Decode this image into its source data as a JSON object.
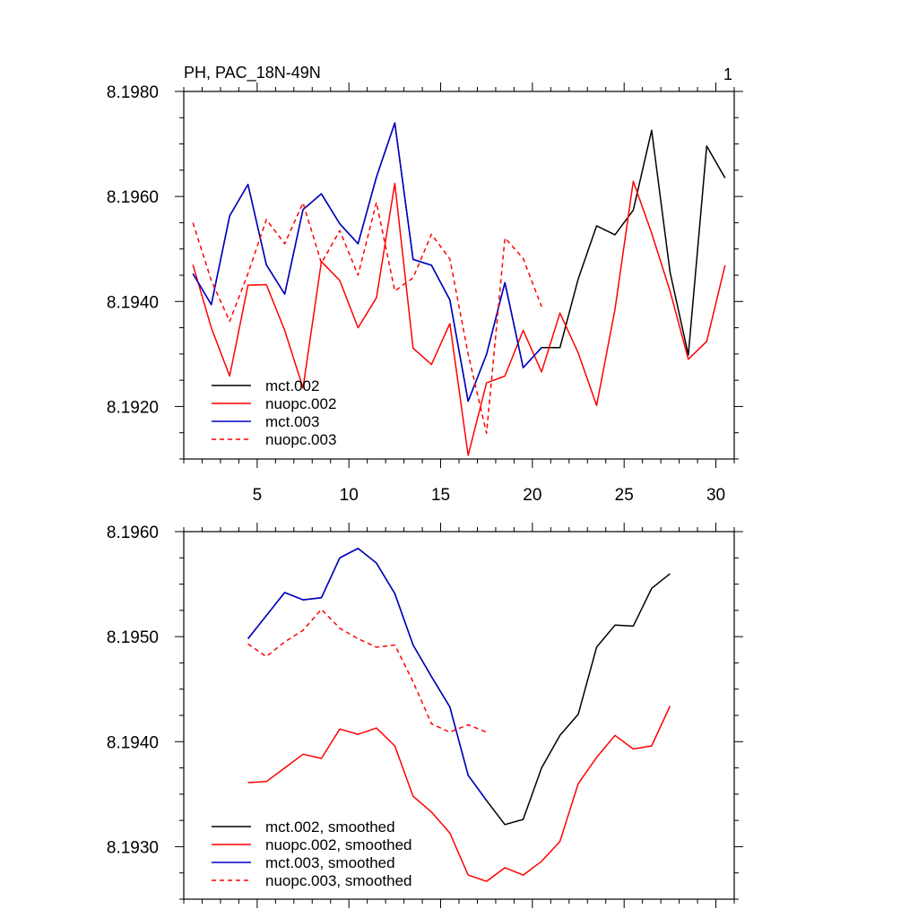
{
  "chart_data": [
    {
      "type": "line",
      "title": "PH, PAC_18N-49N",
      "panel_label": "1",
      "xlim": [
        1,
        31
      ],
      "ylim": [
        8.191,
        8.198
      ],
      "xticks": [
        5,
        10,
        15,
        20,
        25,
        30
      ],
      "xtick_labels": [
        "5",
        "10",
        "15",
        "20",
        "25",
        "30"
      ],
      "yticks": [
        8.192,
        8.194,
        8.196,
        8.198
      ],
      "ytick_labels": [
        "8.1920",
        "8.1940",
        "8.1960",
        "8.1980"
      ],
      "legend": {
        "position": "bottom-left",
        "labels": [
          "mct.002",
          "nuopc.002",
          "mct.003",
          "nuopc.003"
        ]
      },
      "series": [
        {
          "name": "mct.002",
          "color": "#000000",
          "dash": "solid",
          "x": [
            1.5,
            2.5,
            3.5,
            4.5,
            5.5,
            6.5,
            7.5,
            8.5,
            9.5,
            10.5,
            11.5,
            12.5,
            13.5,
            14.5,
            15.5,
            16.5,
            17.5,
            18.5,
            19.5,
            20.5,
            21.5,
            22.5,
            23.5,
            24.5,
            25.5,
            26.5,
            27.5,
            28.5,
            29.5,
            30.5
          ],
          "y": [
            8.19453,
            8.19394,
            8.19563,
            8.19623,
            8.1947,
            8.19414,
            8.19575,
            8.19605,
            8.19548,
            8.1951,
            8.19637,
            8.1974,
            8.1948,
            8.19469,
            8.19403,
            8.1921,
            8.19299,
            8.19436,
            8.19274,
            8.19312,
            8.19312,
            8.19443,
            8.19544,
            8.19527,
            8.19574,
            8.19726,
            8.19456,
            8.19298,
            8.19696,
            8.19635
          ]
        },
        {
          "name": "nuopc.002",
          "color": "#ff0000",
          "dash": "solid",
          "x": [
            1.5,
            2.5,
            3.5,
            4.5,
            5.5,
            6.5,
            7.5,
            8.5,
            9.5,
            10.5,
            11.5,
            12.5,
            13.5,
            14.5,
            15.5,
            16.5,
            17.5,
            18.5,
            19.5,
            20.5,
            21.5,
            22.5,
            23.5,
            24.5,
            25.5,
            26.5,
            27.5,
            28.5,
            29.5,
            30.5
          ],
          "y": [
            8.1947,
            8.1935,
            8.19258,
            8.19431,
            8.19432,
            8.19345,
            8.19235,
            8.19476,
            8.1944,
            8.1935,
            8.19407,
            8.19625,
            8.19311,
            8.1928,
            8.19358,
            8.19107,
            8.19245,
            8.19258,
            8.19345,
            8.19266,
            8.19378,
            8.19302,
            8.19202,
            8.19385,
            8.19629,
            8.1953,
            8.1942,
            8.1929,
            8.19324,
            8.19469
          ]
        },
        {
          "name": "mct.003",
          "color": "#0000cc",
          "dash": "solid",
          "x": [
            1.5,
            2.5,
            3.5,
            4.5,
            5.5,
            6.5,
            7.5,
            8.5,
            9.5,
            10.5,
            11.5,
            12.5,
            13.5,
            14.5,
            15.5,
            16.5,
            17.5,
            18.5,
            19.5,
            20.5
          ],
          "y": [
            8.19453,
            8.19394,
            8.19563,
            8.19623,
            8.1947,
            8.19414,
            8.19575,
            8.19605,
            8.19548,
            8.1951,
            8.19637,
            8.1974,
            8.1948,
            8.19469,
            8.19403,
            8.1921,
            8.19299,
            8.19436,
            8.19274,
            8.19312
          ]
        },
        {
          "name": "nuopc.003",
          "color": "#ff0000",
          "dash": "dashed",
          "x": [
            1.5,
            2.5,
            3.5,
            4.5,
            5.5,
            6.5,
            7.5,
            8.5,
            9.5,
            10.5,
            11.5,
            12.5,
            13.5,
            14.5,
            15.5,
            16.5,
            17.5,
            18.5,
            19.5,
            20.5
          ],
          "y": [
            8.1955,
            8.1944,
            8.19362,
            8.19453,
            8.19556,
            8.1951,
            8.19588,
            8.19473,
            8.19535,
            8.1945,
            8.19589,
            8.1942,
            8.19445,
            8.19528,
            8.19481,
            8.193,
            8.19149,
            8.19521,
            8.19482,
            8.1939
          ]
        }
      ]
    },
    {
      "type": "line",
      "xlim": [
        1,
        31
      ],
      "ylim": [
        8.1925,
        8.196
      ],
      "xticks": [
        5,
        10,
        15,
        20,
        25,
        30
      ],
      "yticks": [
        8.193,
        8.194,
        8.195,
        8.196
      ],
      "ytick_labels": [
        "8.1930",
        "8.1940",
        "8.1950",
        "8.1960"
      ],
      "legend": {
        "position": "bottom-left",
        "labels": [
          "mct.002, smoothed",
          "nuopc.002, smoothed",
          "mct.003, smoothed",
          "nuopc.003, smoothed"
        ]
      },
      "series": [
        {
          "name": "mct.002, smoothed",
          "color": "#000000",
          "dash": "solid",
          "x": [
            4.5,
            5.5,
            6.5,
            7.5,
            8.5,
            9.5,
            10.5,
            11.5,
            12.5,
            13.5,
            14.5,
            15.5,
            16.5,
            17.5,
            18.5,
            19.5,
            20.5,
            21.5,
            22.5,
            23.5,
            24.5,
            25.5,
            26.5,
            27.5
          ],
          "y": [
            8.19498,
            8.1952,
            8.19542,
            8.19535,
            8.19537,
            8.19575,
            8.19584,
            8.1957,
            8.19541,
            8.19492,
            8.19462,
            8.19433,
            8.19368,
            8.19344,
            8.19321,
            8.19326,
            8.19375,
            8.19406,
            8.19426,
            8.1949,
            8.19511,
            8.1951,
            8.19546,
            8.1956
          ]
        },
        {
          "name": "nuopc.002, smoothed",
          "color": "#ff0000",
          "dash": "solid",
          "x": [
            4.5,
            5.5,
            6.5,
            7.5,
            8.5,
            9.5,
            10.5,
            11.5,
            12.5,
            13.5,
            14.5,
            15.5,
            16.5,
            17.5,
            18.5,
            19.5,
            20.5,
            21.5,
            22.5,
            23.5,
            24.5,
            25.5,
            26.5,
            27.5
          ],
          "y": [
            8.19361,
            8.19362,
            8.19375,
            8.19388,
            8.19384,
            8.19412,
            8.19407,
            8.19413,
            8.19396,
            8.19348,
            8.19333,
            8.19313,
            8.19273,
            8.19267,
            8.1928,
            8.19273,
            8.19286,
            8.19305,
            8.1936,
            8.19385,
            8.19406,
            8.19393,
            8.19396,
            8.19434
          ]
        },
        {
          "name": "mct.003, smoothed",
          "color": "#0000cc",
          "dash": "solid",
          "x": [
            4.5,
            5.5,
            6.5,
            7.5,
            8.5,
            9.5,
            10.5,
            11.5,
            12.5,
            13.5,
            14.5,
            15.5,
            16.5,
            17.5
          ],
          "y": [
            8.19498,
            8.1952,
            8.19542,
            8.19535,
            8.19537,
            8.19575,
            8.19584,
            8.1957,
            8.19541,
            8.19492,
            8.19462,
            8.19433,
            8.19368,
            8.19344
          ]
        },
        {
          "name": "nuopc.003, smoothed",
          "color": "#ff0000",
          "dash": "dashed",
          "x": [
            4.5,
            5.5,
            6.5,
            7.5,
            8.5,
            9.5,
            10.5,
            11.5,
            12.5,
            13.5,
            14.5,
            15.5,
            16.5,
            17.5
          ],
          "y": [
            8.19493,
            8.19481,
            8.19495,
            8.19506,
            8.19526,
            8.19508,
            8.19498,
            8.1949,
            8.19492,
            8.19457,
            8.19417,
            8.19409,
            8.19416,
            8.19409
          ]
        }
      ]
    }
  ]
}
